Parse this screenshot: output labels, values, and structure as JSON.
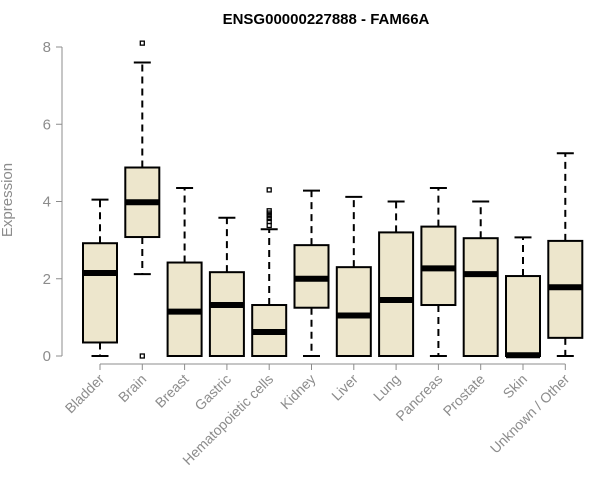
{
  "chart_data": {
    "type": "box",
    "title": "ENSG00000227888 - FAM66A",
    "xlabel": "",
    "ylabel": "Expression",
    "ylim": [
      0,
      8
    ],
    "yticks": [
      "0",
      "2",
      "4",
      "6",
      "8"
    ],
    "grid": false,
    "box_fill": "#ede6cc",
    "categories": [
      "Bladder",
      "Brain",
      "Breast",
      "Gastric",
      "Hematopoietic cells",
      "Kidney",
      "Liver",
      "Lung",
      "Pancreas",
      "Prostate",
      "Skin",
      "Unknown / Other"
    ],
    "boxes": [
      {
        "whisker_low": 0.0,
        "q1": 0.35,
        "median": 2.15,
        "q3": 2.92,
        "whisker_high": 4.05,
        "outliers": []
      },
      {
        "whisker_low": 2.12,
        "q1": 3.08,
        "median": 3.98,
        "q3": 4.88,
        "whisker_high": 7.6,
        "outliers": [
          0.0,
          8.1
        ]
      },
      {
        "whisker_low": 0.0,
        "q1": 0.0,
        "median": 1.15,
        "q3": 2.42,
        "whisker_high": 4.35,
        "outliers": []
      },
      {
        "whisker_low": 0.0,
        "q1": 0.0,
        "median": 1.32,
        "q3": 2.17,
        "whisker_high": 3.58,
        "outliers": []
      },
      {
        "whisker_low": 0.0,
        "q1": 0.0,
        "median": 0.62,
        "q3": 1.32,
        "whisker_high": 3.28,
        "outliers": [
          3.38,
          3.48,
          3.56,
          3.63,
          3.7,
          3.76,
          4.3
        ]
      },
      {
        "whisker_low": 0.0,
        "q1": 1.25,
        "median": 2.0,
        "q3": 2.87,
        "whisker_high": 4.28,
        "outliers": []
      },
      {
        "whisker_low": 0.0,
        "q1": 0.0,
        "median": 1.05,
        "q3": 2.3,
        "whisker_high": 4.12,
        "outliers": []
      },
      {
        "whisker_low": 0.0,
        "q1": 0.0,
        "median": 1.45,
        "q3": 3.2,
        "whisker_high": 4.0,
        "outliers": []
      },
      {
        "whisker_low": 0.0,
        "q1": 1.32,
        "median": 2.27,
        "q3": 3.35,
        "whisker_high": 4.35,
        "outliers": []
      },
      {
        "whisker_low": 0.0,
        "q1": 0.0,
        "median": 2.12,
        "q3": 3.05,
        "whisker_high": 4.0,
        "outliers": []
      },
      {
        "whisker_low": 0.0,
        "q1": 0.0,
        "median": 0.02,
        "q3": 2.07,
        "whisker_high": 3.07,
        "outliers": []
      },
      {
        "whisker_low": 0.0,
        "q1": 0.47,
        "median": 1.78,
        "q3": 2.98,
        "whisker_high": 5.25,
        "outliers": []
      }
    ]
  }
}
